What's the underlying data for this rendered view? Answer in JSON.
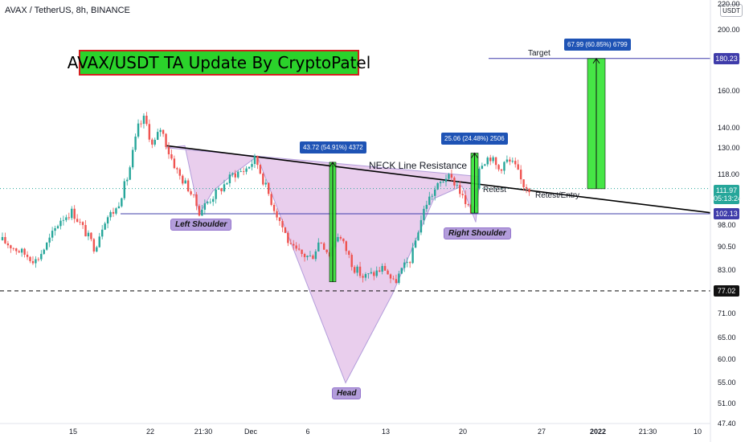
{
  "header": {
    "symbol_line": "AVAX / TetherUS, 8h, BINANCE",
    "currency": "USDT"
  },
  "banner": {
    "text": "AVAX/USDT TA Update By CryptoPatel"
  },
  "annotations": {
    "left_shoulder": "Left Shoulder",
    "head": "Head",
    "right_shoulder": "Right Shoulder",
    "neckline": "NECK Line Resistance",
    "retest": "Retest",
    "retest_entry": "Retest/Entry",
    "target": "Target"
  },
  "measure_boxes": {
    "m1": "43.72 (54.91%) 4372",
    "m2": "25.06 (24.48%) 2506",
    "m3": "67.99 (60.85%) 6799"
  },
  "price_tags": {
    "target": "180.23",
    "current": "111.97",
    "countdown": "05:13:24",
    "neckline_level": "102.13",
    "support": "77.02"
  },
  "colors": {
    "bull": "#26a69a",
    "bear": "#ef5350",
    "pattern_fill": "#e1bee7",
    "pattern_stroke": "#b39ddb",
    "level_line": "#3f3caa",
    "measure_bar": "#32e332",
    "pill": "#b39ddb",
    "banner_bg": "#2bd22b",
    "banner_border": "#d42020"
  },
  "chart_data": {
    "type": "candlestick",
    "scale": "log",
    "ylim": [
      47.4,
      220
    ],
    "y_ticks": [
      "220.00",
      "200.00",
      "180.00",
      "160.00",
      "140.00",
      "130.00",
      "118.00",
      "108.00",
      "98.00",
      "90.50",
      "83.00",
      "77.02",
      "71.00",
      "65.00",
      "60.00",
      "55.00",
      "51.00",
      "47.40"
    ],
    "x_ticks": [
      "15",
      "22",
      "21:30",
      "Dec",
      "6",
      "13",
      "20",
      "27",
      "2022",
      "21:30",
      "10"
    ],
    "levels": {
      "neckline_support": 102.13,
      "head_support": 77.02,
      "target": 180.23
    },
    "current_price": 111.97,
    "ohlc_path": [
      [
        0,
        93
      ],
      [
        25,
        89
      ],
      [
        45,
        86
      ],
      [
        60,
        92
      ],
      [
        75,
        100
      ],
      [
        90,
        103
      ],
      [
        105,
        96
      ],
      [
        118,
        90
      ],
      [
        130,
        100
      ],
      [
        145,
        104
      ],
      [
        160,
        118
      ],
      [
        172,
        140
      ],
      [
        180,
        145
      ],
      [
        190,
        130
      ],
      [
        200,
        140
      ],
      [
        210,
        128
      ],
      [
        222,
        118
      ],
      [
        235,
        112
      ],
      [
        248,
        103
      ],
      [
        262,
        108
      ],
      [
        275,
        112
      ],
      [
        290,
        118
      ],
      [
        305,
        120
      ],
      [
        318,
        125
      ],
      [
        328,
        115
      ],
      [
        340,
        105
      ],
      [
        352,
        97
      ],
      [
        362,
        90
      ],
      [
        375,
        88
      ],
      [
        388,
        87
      ],
      [
        398,
        93
      ],
      [
        410,
        88
      ],
      [
        420,
        95
      ],
      [
        430,
        90
      ],
      [
        440,
        84
      ],
      [
        452,
        81
      ],
      [
        465,
        82
      ],
      [
        478,
        84
      ],
      [
        490,
        79
      ],
      [
        500,
        83
      ],
      [
        512,
        87
      ],
      [
        522,
        98
      ],
      [
        530,
        106
      ],
      [
        540,
        111
      ],
      [
        555,
        117
      ],
      [
        568,
        114
      ],
      [
        580,
        105
      ],
      [
        588,
        102
      ],
      [
        597,
        123
      ],
      [
        610,
        126
      ],
      [
        620,
        120
      ],
      [
        630,
        124
      ],
      [
        640,
        122
      ],
      [
        650,
        114
      ],
      [
        660,
        112
      ]
    ]
  }
}
